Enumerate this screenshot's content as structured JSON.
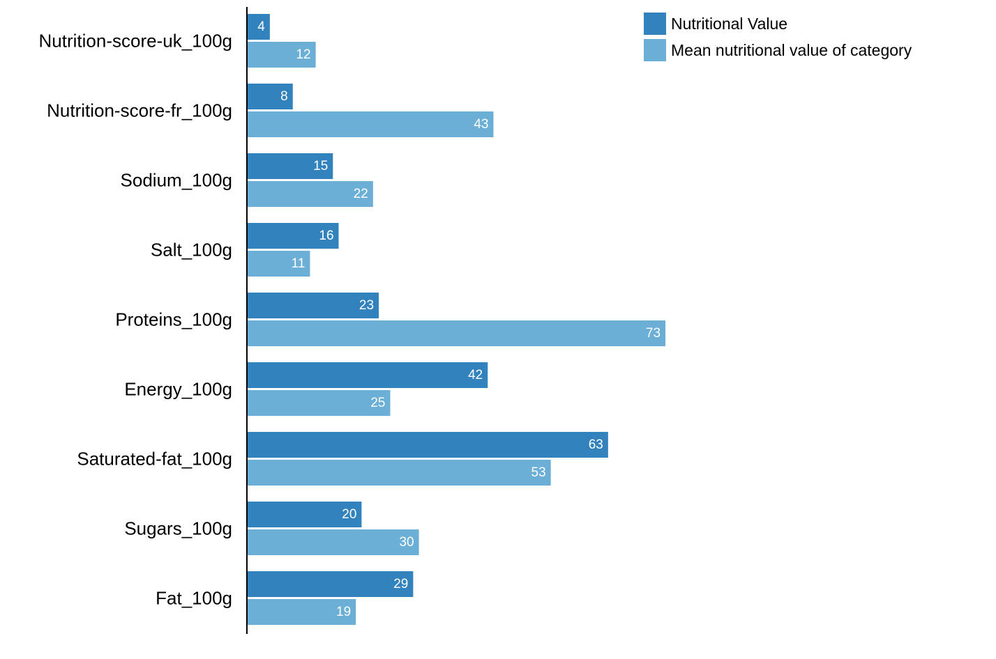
{
  "chart_data": {
    "type": "bar",
    "orientation": "horizontal",
    "categories": [
      "Nutrition-score-uk_100g",
      "Nutrition-score-fr_100g",
      "Sodium_100g",
      "Salt_100g",
      "Proteins_100g",
      "Energy_100g",
      "Saturated-fat_100g",
      "Sugars_100g",
      "Fat_100g"
    ],
    "series": [
      {
        "name": "Nutritional Value",
        "color": "#3182bd",
        "values": [
          4,
          8,
          15,
          16,
          23,
          42,
          63,
          20,
          29
        ]
      },
      {
        "name": "Mean nutritional value of category",
        "color": "#6baed6",
        "values": [
          12,
          43,
          22,
          11,
          73,
          25,
          53,
          30,
          19
        ]
      }
    ],
    "xlim": [
      0,
      73
    ],
    "grid": false,
    "x_axis_visible": false,
    "data_labels": "inside-end",
    "legend": {
      "position": "top-right"
    },
    "title": "",
    "xlabel": "",
    "ylabel": ""
  }
}
